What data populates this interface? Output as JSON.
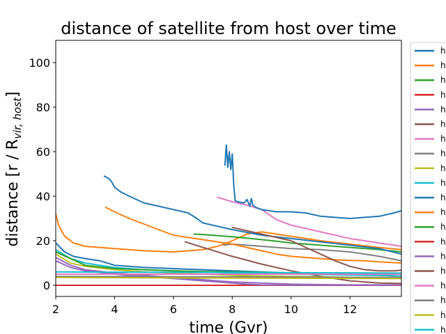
{
  "chart_data": {
    "type": "line",
    "title": "distance of satellite from host over time",
    "xlabel": "time (Gvr)",
    "ylabel_main": "distance [r / R",
    "ylabel_sub": "vir, host",
    "ylabel_end": "]",
    "xlim": [
      2,
      13.75
    ],
    "ylim": [
      -5,
      110
    ],
    "xticks": [
      2,
      4,
      6,
      8,
      10,
      12
    ],
    "yticks": [
      0,
      20,
      40,
      60,
      80,
      100
    ],
    "grid": false,
    "legend_placement": "right, outside plot (clipped)",
    "legend_labels": [
      "h",
      "h",
      "h",
      "h",
      "h",
      "h",
      "h",
      "h",
      "h",
      "h",
      "h",
      "h",
      "h",
      "h",
      "h",
      "h",
      "h",
      "h",
      "h",
      "h"
    ],
    "colors": [
      "#1f77b4",
      "#ff7f0e",
      "#2ca02c",
      "#d62728",
      "#9467bd",
      "#8c564b",
      "#e377c2",
      "#7f7f7f",
      "#bcbd22",
      "#17becf"
    ],
    "series": [
      {
        "x": [
          2.0,
          2.3,
          2.6,
          3.0,
          3.5,
          4.0,
          5.0,
          6.0,
          7.0,
          8.0,
          9.0,
          10.0,
          11.0,
          12.0,
          13.0,
          13.75
        ],
        "y": [
          19.0,
          15.0,
          13.0,
          12.0,
          11.0,
          9.0,
          8.0,
          7.5,
          7.0,
          6.5,
          6.0,
          5.5,
          5.0,
          4.8,
          4.5,
          4.2
        ]
      },
      {
        "x": [
          2.0,
          2.1,
          2.3,
          2.6,
          3.0,
          3.5,
          4.0,
          5.0,
          6.0,
          7.0,
          7.5,
          8.0,
          8.5,
          9.0,
          9.5,
          10.0,
          10.5,
          11.0,
          12.0,
          13.0,
          13.75
        ],
        "y": [
          32.0,
          27.0,
          22.0,
          19.0,
          17.5,
          17.0,
          16.5,
          15.5,
          15.0,
          16.0,
          17.5,
          20.0,
          23.0,
          24.0,
          23.0,
          22.0,
          21.0,
          20.0,
          18.5,
          17.0,
          16.0
        ]
      },
      {
        "x": [
          6.7,
          7.0,
          7.5,
          8.0,
          8.5,
          9.0,
          9.5,
          10.0,
          10.5,
          11.0,
          12.0,
          13.0,
          13.75
        ],
        "y": [
          23.0,
          22.8,
          22.3,
          21.8,
          21.2,
          20.5,
          19.8,
          19.0,
          18.5,
          18.0,
          17.0,
          16.0,
          15.0
        ]
      },
      {
        "x": [
          2.0,
          13.75
        ],
        "y": [
          0.0,
          0.0
        ]
      },
      {
        "x": [
          2.0,
          2.5,
          3.0,
          4.0,
          5.0,
          6.0,
          7.0,
          8.0,
          9.0,
          10.0,
          11.0,
          12.0,
          13.0,
          13.75
        ],
        "y": [
          12.5,
          9.0,
          7.0,
          5.5,
          4.5,
          3.5,
          2.5,
          1.5,
          1.0,
          0.5,
          0.3,
          0.2,
          0.2,
          0.2
        ]
      },
      {
        "x": [
          6.4,
          7.0,
          8.0,
          9.0,
          10.0,
          11.0,
          12.0,
          13.0,
          13.75
        ],
        "y": [
          19.5,
          17.0,
          13.0,
          9.5,
          6.5,
          4.0,
          2.0,
          1.0,
          0.8
        ]
      },
      {
        "x": [
          7.5,
          8.0,
          8.5,
          9.0,
          9.5,
          10.0,
          11.0,
          12.0,
          13.0,
          13.75
        ],
        "y": [
          39.5,
          37.5,
          36.0,
          34.0,
          29.5,
          27.0,
          24.0,
          21.0,
          19.0,
          17.5
        ]
      },
      {
        "x": [
          7.7,
          8.0,
          8.5,
          9.0,
          10.0,
          11.0,
          12.0,
          13.0,
          13.75
        ],
        "y": [
          18.0,
          18.5,
          18.0,
          17.5,
          16.5,
          16.0,
          15.0,
          13.0,
          11.0
        ]
      },
      {
        "x": [
          2.0,
          2.5,
          3.0,
          4.0,
          5.0,
          6.0,
          7.0,
          8.0,
          9.0,
          10.0,
          11.0,
          12.0,
          13.0,
          13.75
        ],
        "y": [
          14.0,
          10.0,
          8.5,
          7.0,
          6.0,
          5.5,
          5.0,
          4.5,
          4.2,
          4.0,
          3.8,
          3.6,
          3.5,
          3.5
        ]
      },
      {
        "x": [
          2.0,
          2.5,
          3.0,
          4.0,
          5.0,
          6.0,
          7.0,
          8.0,
          9.0,
          10.0,
          11.0,
          12.0,
          13.0,
          13.75
        ],
        "y": [
          16.0,
          12.0,
          10.0,
          8.0,
          7.0,
          6.5,
          6.0,
          5.5,
          5.2,
          5.0,
          4.8,
          4.6,
          4.4,
          4.2
        ]
      },
      {
        "x": [
          3.65,
          3.8,
          3.9,
          4.0,
          4.2,
          4.5,
          5.0,
          5.5,
          6.0,
          6.5,
          6.8,
          7.0,
          7.5,
          8.0,
          9.0,
          10.0,
          11.0,
          12.0,
          13.0,
          13.75
        ],
        "y": [
          49.0,
          48.0,
          46.5,
          44.0,
          42.0,
          40.0,
          37.0,
          35.5,
          34.0,
          32.5,
          30.0,
          28.0,
          26.5,
          25.0,
          22.5,
          21.0,
          19.5,
          18.0,
          16.5,
          14.0
        ]
      },
      {
        "x": [
          3.7,
          4.0,
          4.5,
          5.0,
          5.5,
          6.0,
          6.5,
          7.0,
          7.5,
          8.0,
          8.5,
          9.0,
          9.5,
          10.0,
          10.5,
          11.0,
          11.5,
          12.0,
          12.5,
          13.0,
          13.75
        ],
        "y": [
          35.0,
          33.0,
          30.0,
          27.5,
          25.0,
          22.5,
          21.5,
          20.5,
          19.5,
          18.5,
          17.0,
          15.5,
          14.0,
          13.0,
          12.5,
          12.0,
          11.5,
          11.2,
          11.0,
          10.5,
          10.0
        ]
      },
      {
        "x": [
          2.0,
          3.0,
          4.0,
          5.0,
          6.0,
          7.0,
          8.0,
          9.0,
          10.0,
          11.0,
          12.0,
          13.0,
          13.75
        ],
        "y": [
          15.0,
          9.0,
          7.5,
          7.0,
          6.5,
          6.2,
          6.0,
          5.8,
          5.6,
          5.5,
          5.4,
          5.3,
          5.2
        ]
      },
      {
        "x": [
          2.0,
          13.75
        ],
        "y": [
          0.0,
          0.0
        ]
      },
      {
        "x": [
          2.0,
          2.5,
          3.0,
          4.0,
          5.0,
          6.0,
          7.0,
          8.0,
          8.5,
          9.0,
          10.0,
          11.0,
          12.0,
          13.0,
          13.75
        ],
        "y": [
          11.0,
          8.0,
          6.5,
          5.0,
          3.8,
          3.0,
          2.0,
          1.0,
          0.5,
          0.2,
          0.1,
          0.1,
          0.1,
          0.1,
          0.1
        ]
      },
      {
        "x": [
          8.0,
          9.0,
          10.0,
          10.5,
          11.0,
          11.5,
          12.0,
          12.5,
          13.0,
          13.5,
          13.75
        ],
        "y": [
          26.0,
          23.0,
          20.0,
          17.0,
          14.0,
          11.0,
          8.5,
          7.0,
          6.5,
          6.5,
          6.8
        ]
      },
      {
        "x": [
          2.0,
          13.75
        ],
        "y": [
          5.0,
          5.0
        ]
      },
      {
        "x": [
          2.0,
          13.75
        ],
        "y": [
          4.0,
          3.5
        ]
      },
      {
        "x": [
          2.0,
          13.75
        ],
        "y": [
          3.5,
          3.0
        ]
      },
      {
        "x": [
          2.0,
          13.75
        ],
        "y": [
          6.0,
          5.5
        ]
      },
      {
        "x": [
          7.75,
          7.8,
          7.85,
          7.9,
          7.95,
          8.0,
          8.05,
          8.1,
          8.2,
          8.4,
          8.5,
          8.6,
          8.65,
          8.7,
          8.8,
          9.0,
          9.5,
          10.0,
          10.5,
          11.0,
          11.5,
          12.0,
          12.5,
          13.0,
          13.5,
          13.75
        ],
        "y": [
          54.0,
          63.0,
          53.0,
          60.0,
          52.0,
          59.0,
          45.0,
          38.0,
          37.5,
          37.0,
          38.5,
          35.5,
          39.0,
          36.0,
          35.0,
          34.0,
          33.0,
          33.0,
          32.5,
          31.0,
          30.5,
          30.0,
          30.5,
          31.0,
          32.5,
          33.5
        ]
      }
    ]
  }
}
